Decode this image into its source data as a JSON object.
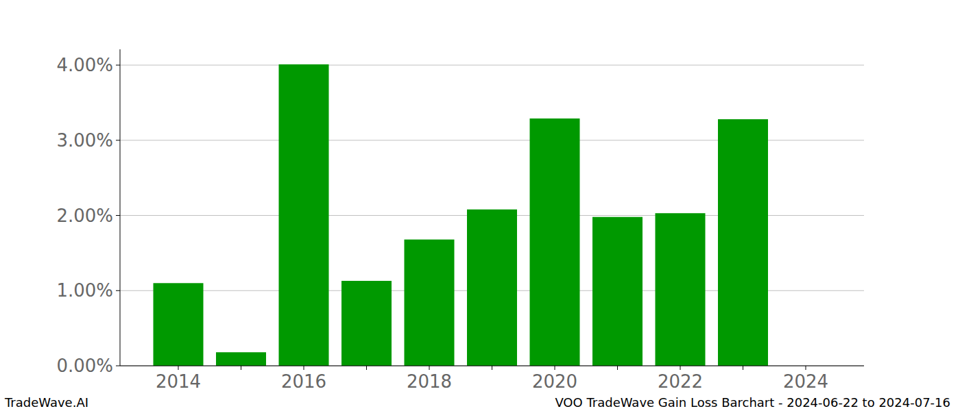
{
  "chart_data": {
    "type": "bar",
    "title": "VOO TradeWave Gain Loss Barchart - 2024-06-22 to 2024-07-16",
    "annotations": [
      "TradeWave.AI"
    ],
    "categories": [
      "2014",
      null,
      "2016",
      null,
      "2018",
      null,
      "2020",
      null,
      "2022",
      null,
      "2024"
    ],
    "values": [
      1.1,
      0.18,
      4.01,
      1.13,
      1.68,
      2.08,
      3.29,
      1.98,
      2.03,
      3.28,
      null
    ],
    "color": "#009900",
    "ylim": [
      0,
      4.21
    ],
    "yticks": [
      {
        "value": 0,
        "label": "0.00%"
      },
      {
        "value": 1,
        "label": "1.00%"
      },
      {
        "value": 2,
        "label": "2.00%"
      },
      {
        "value": 3,
        "label": "3.00%"
      },
      {
        "value": 4,
        "label": "4.00%"
      }
    ],
    "grid": true
  }
}
